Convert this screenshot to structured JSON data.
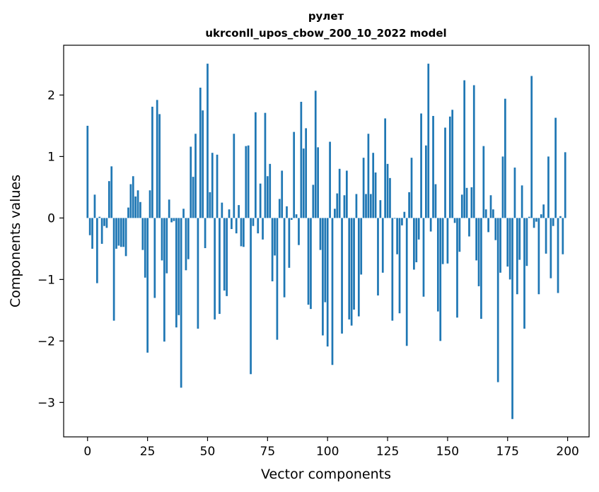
{
  "chart_data": {
    "type": "bar",
    "title": "рулет",
    "subtitle": "ukrconll_upos_cbow_200_10_2022 model",
    "xlabel": "Vector components",
    "ylabel": "Components values",
    "xlim": [
      -9.95,
      208.95
    ],
    "ylim": [
      -3.56,
      2.81
    ],
    "xticks": [
      0,
      25,
      50,
      75,
      100,
      125,
      150,
      175,
      200
    ],
    "yticks": [
      -3,
      -2,
      -1,
      0,
      1,
      2
    ],
    "bar_color": "#1f77b4",
    "grid": false,
    "legend": "none",
    "x": [
      0,
      1,
      2,
      3,
      4,
      5,
      6,
      7,
      8,
      9,
      10,
      11,
      12,
      13,
      14,
      15,
      16,
      17,
      18,
      19,
      20,
      21,
      22,
      23,
      24,
      25,
      26,
      27,
      28,
      29,
      30,
      31,
      32,
      33,
      34,
      35,
      36,
      37,
      38,
      39,
      40,
      41,
      42,
      43,
      44,
      45,
      46,
      47,
      48,
      49,
      50,
      51,
      52,
      53,
      54,
      55,
      56,
      57,
      58,
      59,
      60,
      61,
      62,
      63,
      64,
      65,
      66,
      67,
      68,
      69,
      70,
      71,
      72,
      73,
      74,
      75,
      76,
      77,
      78,
      79,
      80,
      81,
      82,
      83,
      84,
      85,
      86,
      87,
      88,
      89,
      90,
      91,
      92,
      93,
      94,
      95,
      96,
      97,
      98,
      99,
      100,
      101,
      102,
      103,
      104,
      105,
      106,
      107,
      108,
      109,
      110,
      111,
      112,
      113,
      114,
      115,
      116,
      117,
      118,
      119,
      120,
      121,
      122,
      123,
      124,
      125,
      126,
      127,
      128,
      129,
      130,
      131,
      132,
      133,
      134,
      135,
      136,
      137,
      138,
      139,
      140,
      141,
      142,
      143,
      144,
      145,
      146,
      147,
      148,
      149,
      150,
      151,
      152,
      153,
      154,
      155,
      156,
      157,
      158,
      159,
      160,
      161,
      162,
      163,
      164,
      165,
      166,
      167,
      168,
      169,
      170,
      171,
      172,
      173,
      174,
      175,
      176,
      177,
      178,
      179,
      180,
      181,
      182,
      183,
      184,
      185,
      186,
      187,
      188,
      189,
      190,
      191,
      192,
      193,
      194,
      195,
      196,
      197,
      198,
      199
    ],
    "values": [
      1.5,
      -0.28,
      -0.5,
      0.38,
      -1.06,
      0.02,
      -0.42,
      -0.13,
      -0.16,
      0.6,
      0.84,
      -1.67,
      -0.5,
      -0.45,
      -0.47,
      -0.47,
      -0.62,
      0.17,
      0.55,
      0.68,
      0.35,
      0.45,
      0.26,
      -0.52,
      -0.97,
      -2.19,
      0.45,
      1.81,
      -1.3,
      1.92,
      1.69,
      -0.69,
      -2.01,
      -0.9,
      0.3,
      -0.07,
      -0.05,
      -1.78,
      -1.58,
      -2.76,
      0.15,
      -0.85,
      -0.67,
      1.16,
      0.67,
      1.37,
      -1.8,
      2.12,
      1.75,
      -0.49,
      2.51,
      0.42,
      1.06,
      -1.65,
      1.03,
      -1.56,
      0.25,
      -1.18,
      -1.27,
      0.14,
      -0.18,
      1.37,
      -0.25,
      0.21,
      -0.46,
      -0.47,
      1.17,
      1.18,
      -2.54,
      -0.13,
      1.72,
      -0.25,
      0.56,
      -0.35,
      1.71,
      0.68,
      0.88,
      -1.03,
      -0.61,
      -1.98,
      0.31,
      0.77,
      -1.29,
      0.19,
      -0.81,
      -0.03,
      1.4,
      0.06,
      -0.44,
      1.89,
      1.13,
      1.46,
      -1.41,
      -1.48,
      0.54,
      2.07,
      1.15,
      -0.52,
      -1.91,
      -1.37,
      -2.09,
      1.24,
      -2.39,
      0.15,
      0.4,
      0.8,
      -1.88,
      0.37,
      0.77,
      -1.65,
      -1.75,
      -1.49,
      0.39,
      -1.6,
      -0.92,
      0.98,
      0.39,
      1.37,
      0.39,
      1.06,
      0.74,
      -1.26,
      0.29,
      -0.89,
      1.62,
      0.88,
      0.65,
      -1.67,
      -0.01,
      -0.59,
      -1.55,
      -0.12,
      0.1,
      -2.08,
      0.42,
      0.98,
      -0.84,
      -0.72,
      -0.35,
      1.7,
      -1.28,
      1.18,
      2.51,
      -0.22,
      1.66,
      0.55,
      -1.52,
      -2.0,
      -0.75,
      1.47,
      -0.74,
      1.65,
      1.76,
      -0.08,
      -1.62,
      -0.55,
      0.38,
      2.24,
      0.49,
      -0.3,
      0.5,
      2.16,
      -0.69,
      -1.11,
      -1.64,
      1.17,
      0.14,
      -0.23,
      0.37,
      0.14,
      -0.36,
      -2.67,
      -0.89,
      1.0,
      1.94,
      -0.79,
      -1.0,
      -3.27,
      0.82,
      -1.24,
      -0.68,
      0.53,
      -1.8,
      -0.78,
      0.02,
      2.31,
      -0.16,
      -0.06,
      -1.24,
      0.06,
      0.22,
      -0.58,
      1.0,
      -0.98,
      -0.13,
      1.63,
      -1.22,
      0.03,
      -0.59,
      1.07
    ]
  }
}
